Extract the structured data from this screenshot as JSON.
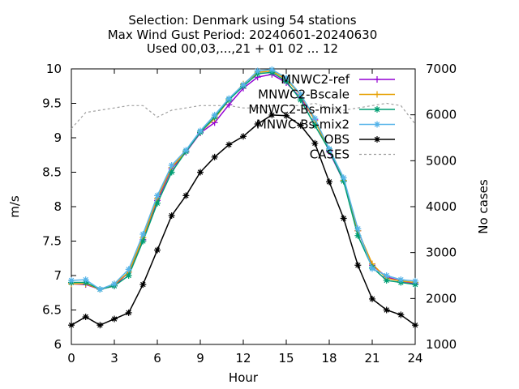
{
  "chart_data": {
    "type": "line",
    "title_lines": [
      "Selection: Denmark using    54 stations",
      "Max Wind Gust   Period: 20240601-20240630",
      "Used 00,03,...,21 + 01 02 ... 12"
    ],
    "xlabel": "Hour",
    "ylabel": "m/s",
    "y2label": "No cases",
    "xlim": [
      0,
      24
    ],
    "ylim": [
      6,
      10
    ],
    "y2lim": [
      1000,
      7000
    ],
    "xticks": [
      "0",
      "3",
      "6",
      "9",
      "12",
      "15",
      "18",
      "21",
      "24"
    ],
    "yticks": [
      "6",
      "6.5",
      "7",
      "7.5",
      "8",
      "8.5",
      "9",
      "9.5",
      "10"
    ],
    "y2ticks": [
      "1000",
      "2000",
      "3000",
      "4000",
      "5000",
      "6000",
      "7000"
    ],
    "grid": false,
    "legend_position": "top-right",
    "x": [
      0,
      1,
      2,
      3,
      4,
      5,
      6,
      7,
      8,
      9,
      10,
      11,
      12,
      13,
      14,
      15,
      16,
      17,
      18,
      19,
      20,
      21,
      22,
      23,
      24
    ],
    "series": [
      {
        "name": "MNWC2-ref",
        "color": "#9400d3",
        "marker": "plus",
        "axis": "y1",
        "values": [
          6.88,
          6.87,
          6.8,
          6.85,
          7.05,
          7.52,
          8.09,
          8.55,
          8.79,
          9.07,
          9.22,
          9.48,
          9.72,
          9.88,
          9.92,
          9.8,
          9.58,
          9.26,
          8.8,
          8.37,
          7.65,
          7.15,
          6.98,
          6.92,
          6.88
        ]
      },
      {
        "name": "MNWC2-Bscale",
        "color": "#e69f00",
        "marker": "plus",
        "axis": "y1",
        "values": [
          6.88,
          6.88,
          6.8,
          6.87,
          7.05,
          7.55,
          8.12,
          8.57,
          8.8,
          9.08,
          9.28,
          9.55,
          9.78,
          9.95,
          9.97,
          9.85,
          9.62,
          9.25,
          8.82,
          8.38,
          7.65,
          7.17,
          6.96,
          6.92,
          6.9
        ]
      },
      {
        "name": "MNWC2-Bs-mix1",
        "color": "#009e73",
        "marker": "star",
        "axis": "y1",
        "values": [
          6.9,
          6.9,
          6.8,
          6.85,
          7.0,
          7.5,
          8.05,
          8.5,
          8.8,
          9.08,
          9.3,
          9.55,
          9.75,
          9.93,
          9.95,
          9.82,
          9.55,
          9.18,
          8.82,
          8.37,
          7.58,
          7.12,
          6.93,
          6.9,
          6.87
        ]
      },
      {
        "name": "MNWC-Bs-mix2",
        "color": "#56b4e9",
        "marker": "star",
        "axis": "y1",
        "values": [
          6.93,
          6.94,
          6.8,
          6.88,
          7.09,
          7.6,
          8.16,
          8.6,
          8.82,
          9.1,
          9.33,
          9.57,
          9.77,
          9.97,
          9.99,
          9.87,
          9.63,
          9.28,
          8.84,
          8.42,
          7.68,
          7.1,
          7.0,
          6.94,
          6.92
        ]
      },
      {
        "name": "OBS",
        "color": "#000000",
        "marker": "star",
        "axis": "y1",
        "values": [
          6.28,
          6.4,
          6.28,
          6.37,
          6.46,
          6.87,
          7.37,
          7.87,
          8.16,
          8.5,
          8.72,
          8.9,
          9.02,
          9.2,
          9.33,
          9.32,
          9.18,
          8.92,
          8.36,
          7.83,
          7.15,
          6.66,
          6.5,
          6.43,
          6.28
        ]
      },
      {
        "name": "CASES",
        "color": "#a0a0a0",
        "marker": "none",
        "dash": true,
        "axis": "y2",
        "values": [
          5700,
          6050,
          6100,
          6150,
          6200,
          6200,
          5950,
          6100,
          6150,
          6200,
          6200,
          6200,
          6150,
          6150,
          6200,
          6200,
          6200,
          6250,
          6150,
          6100,
          6150,
          6200,
          6250,
          6200,
          5800
        ]
      }
    ]
  }
}
